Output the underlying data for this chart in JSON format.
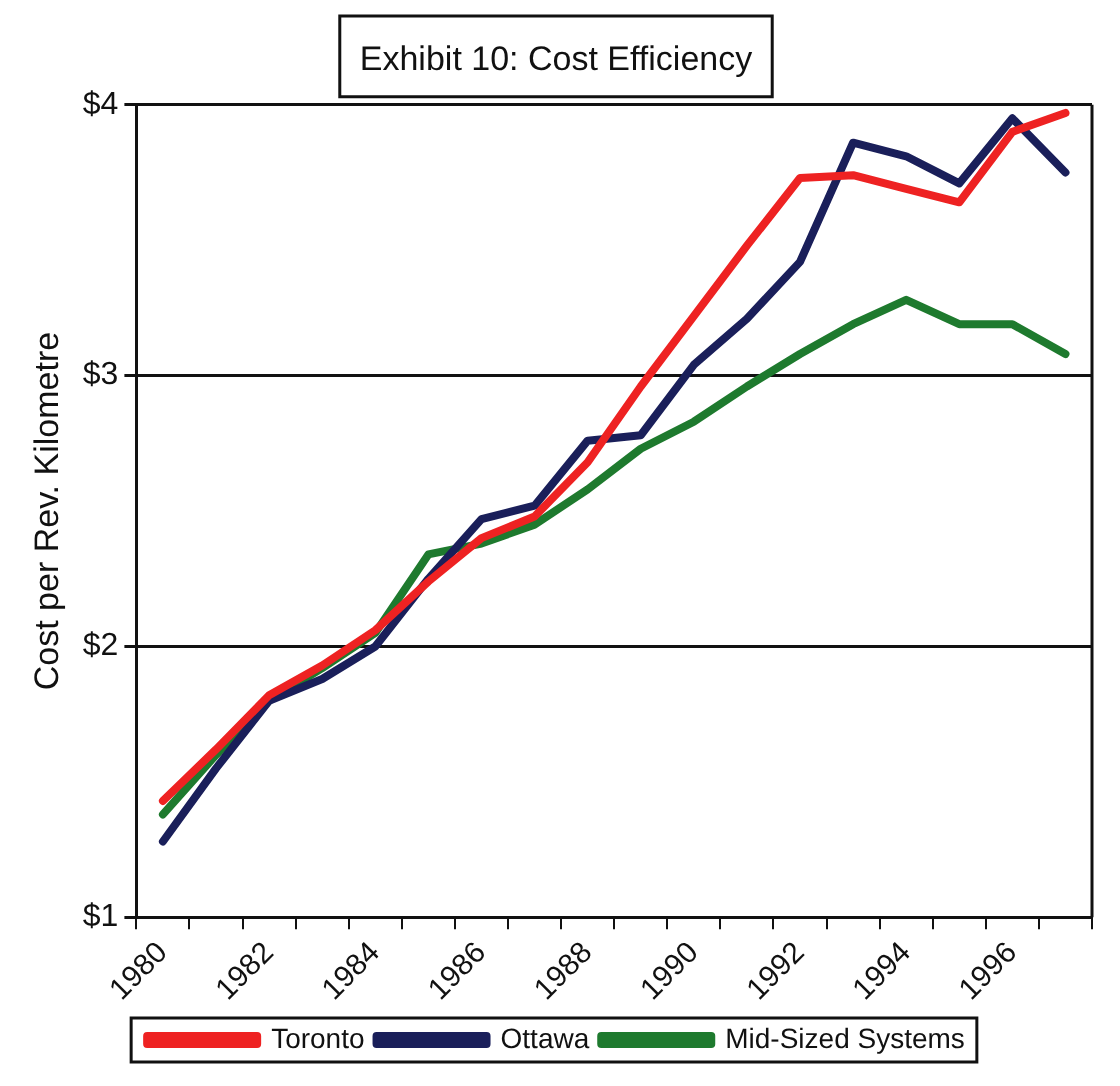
{
  "chart_data": {
    "type": "line",
    "title": "Exhibit 10: Cost Efficiency",
    "ylabel": "Cost per Rev. Kilometre",
    "categories": [
      "1980",
      null,
      "1982",
      null,
      "1984",
      null,
      "1986",
      null,
      "1988",
      null,
      "1990",
      null,
      "1992",
      null,
      "1994",
      null,
      "1996",
      null
    ],
    "series": [
      {
        "name": "Toronto",
        "color": "#ee2222",
        "values": [
          1.43,
          1.62,
          1.82,
          1.93,
          2.06,
          2.24,
          2.4,
          2.48,
          2.68,
          2.96,
          3.22,
          3.48,
          3.73,
          3.74,
          3.69,
          3.64,
          3.9,
          3.97
        ]
      },
      {
        "name": "Ottawa",
        "color": "#1a1f5a",
        "values": [
          1.28,
          1.55,
          1.8,
          1.88,
          2.0,
          2.25,
          2.47,
          2.52,
          2.76,
          2.78,
          3.04,
          3.21,
          3.42,
          3.86,
          3.81,
          3.71,
          3.95,
          3.75
        ]
      },
      {
        "name": "Mid-Sized Systems",
        "color": "#1e7a2e",
        "values": [
          1.38,
          1.6,
          1.8,
          1.92,
          2.05,
          2.34,
          2.38,
          2.45,
          2.58,
          2.73,
          2.83,
          2.96,
          3.08,
          3.19,
          3.28,
          3.19,
          3.19,
          3.08
        ]
      }
    ],
    "ylim": [
      1,
      4
    ],
    "yticks": [
      {
        "value": 1,
        "label": "$1"
      },
      {
        "value": 2,
        "label": "$2"
      },
      {
        "value": 3,
        "label": "$3"
      },
      {
        "value": 4,
        "label": "$4"
      }
    ],
    "grid": "y",
    "legend": "bottom",
    "marker": "none",
    "line_style": "solid"
  }
}
